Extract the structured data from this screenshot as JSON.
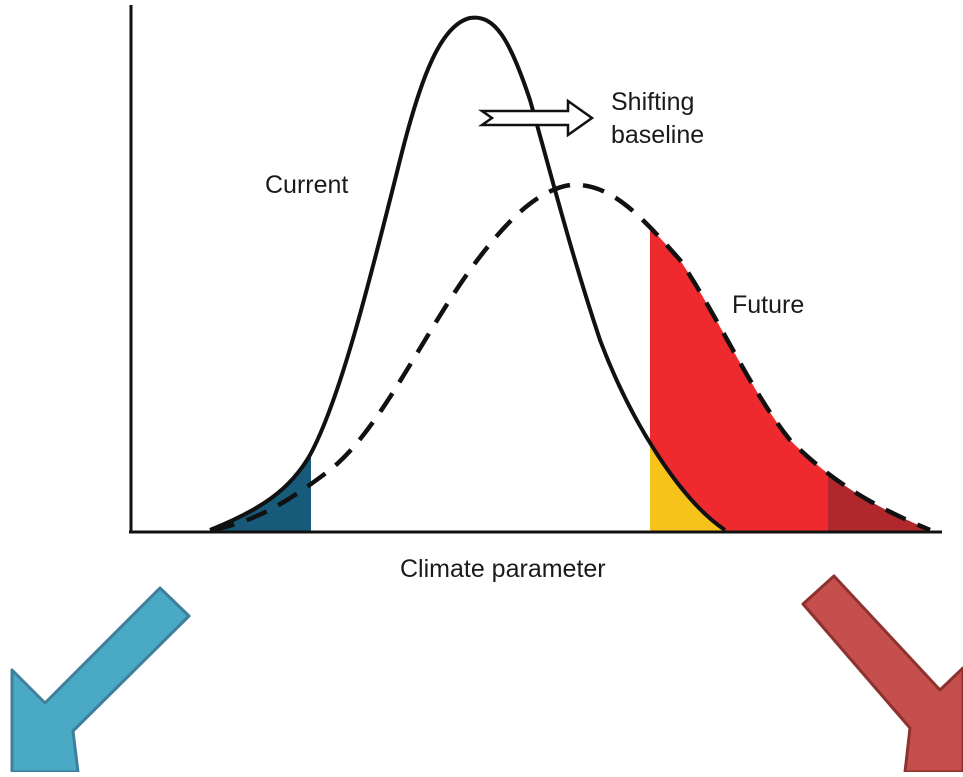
{
  "diagram": {
    "labels": {
      "current": "Current",
      "future": "Future",
      "shift_line1": "Shifting",
      "shift_line2": "baseline",
      "x_axis": "Climate parameter"
    },
    "colors": {
      "curve": "#111111",
      "cold_tail_current": "#185a7a",
      "cold_tail_future": "#3aa4dc",
      "hot_tail_current": "#f5c31b",
      "hot_tail_future": "#ee2a2f",
      "hot_extreme_future": "#b0282c",
      "arrow_cold_fill": "#4aa9c4",
      "arrow_cold_stroke": "#3f7f9c",
      "arrow_hot_fill": "#c44f4d",
      "arrow_hot_stroke": "#8e3230"
    }
  }
}
